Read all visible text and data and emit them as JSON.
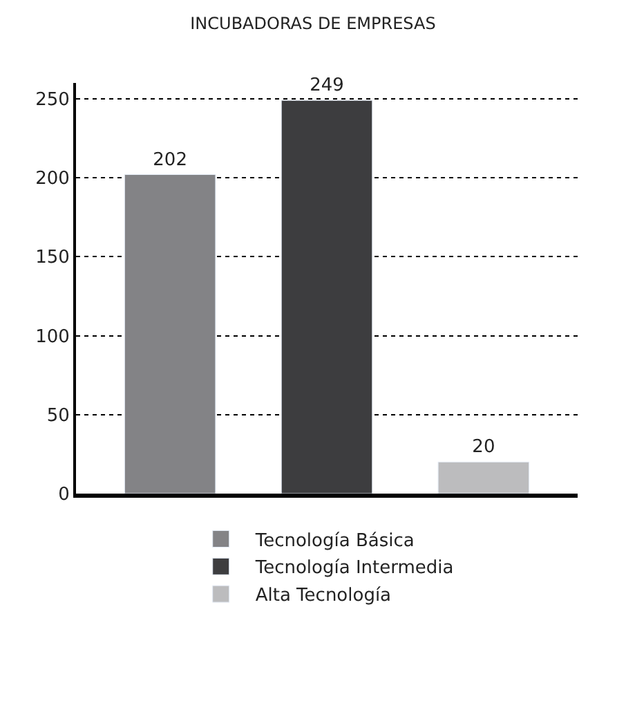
{
  "chart_data": {
    "type": "bar",
    "title": "INCUBADORAS DE EMPRESAS",
    "categories": [
      null,
      null,
      null
    ],
    "series": [
      {
        "name": "Tecnología Básica",
        "color": "#838386",
        "values": [
          202,
          null,
          null
        ]
      },
      {
        "name": "Tecnología Intermedia",
        "color": "#3d3d3f",
        "values": [
          null,
          249,
          null
        ]
      },
      {
        "name": "Alta Tecnología",
        "color": "#bcbcbe",
        "values": [
          null,
          null,
          20
        ]
      }
    ],
    "ylim": [
      0,
      260
    ],
    "yticks": [
      0,
      50,
      100,
      150,
      200,
      250
    ],
    "grid": "y",
    "legend": "bottom",
    "data_labels": true
  }
}
